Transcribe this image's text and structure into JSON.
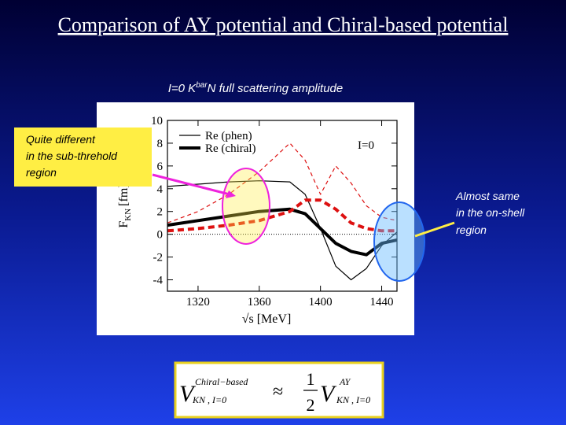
{
  "slide": {
    "title": "Comparison of AY potential and Chiral-based potential",
    "subtitle": {
      "pre": "I=0 K",
      "sup": "bar",
      "post": "N full scattering amplitude"
    },
    "note_left": [
      "Quite different",
      "in the sub-threhold",
      "region"
    ],
    "note_right": [
      "Almost same",
      "in the on-shell",
      "region"
    ],
    "formula": {
      "v": "V",
      "left_sup": "Chiral−based",
      "left_sub": "KN , I=0",
      "approx": "≈",
      "num": "1",
      "den": "2",
      "right_sup": "AY",
      "right_sub": "KN , I=0"
    }
  },
  "chart_data": {
    "type": "line",
    "annotation": "I=0",
    "xlabel": "√s [MeV]",
    "ylabel": {
      "main": "F",
      "sub": "KN",
      "unit": "[fm]"
    },
    "x": [
      1300,
      1320,
      1340,
      1360,
      1380,
      1390,
      1400,
      1410,
      1420,
      1430,
      1440,
      1450
    ],
    "series": [
      {
        "name": "Re (phen)",
        "color": "#000000",
        "width": 1.2,
        "dashed": false,
        "values": [
          4.2,
          4.4,
          4.6,
          4.7,
          4.6,
          3.5,
          0.5,
          -2.8,
          -4.0,
          -3.0,
          -1.0,
          0.2
        ]
      },
      {
        "name": "Re (chiral)",
        "color": "#000000",
        "width": 4,
        "dashed": false,
        "values": [
          0.8,
          1.2,
          1.6,
          2.0,
          2.2,
          1.8,
          0.5,
          -0.8,
          -1.5,
          -1.8,
          -0.8,
          -0.5
        ]
      },
      {
        "color": "#dd1111",
        "width": 1.2,
        "dashed": true,
        "values": [
          1.0,
          2.0,
          3.5,
          5.5,
          8.0,
          6.5,
          3.5,
          6.0,
          4.5,
          2.5,
          1.5,
          1.2
        ]
      },
      {
        "color": "#dd1111",
        "width": 4,
        "dashed": true,
        "values": [
          0.3,
          0.5,
          0.8,
          1.2,
          2.0,
          3.0,
          3.0,
          2.2,
          1.0,
          0.5,
          0.3,
          0.3
        ]
      }
    ],
    "legend": "upper left",
    "xlim": [
      1300,
      1450
    ],
    "ylim": [
      -5,
      10
    ],
    "xticks": [
      1320,
      1360,
      1400,
      1440
    ],
    "yticks": [
      -4,
      -2,
      0,
      2,
      4,
      6,
      8,
      10
    ],
    "zero_line": true
  }
}
